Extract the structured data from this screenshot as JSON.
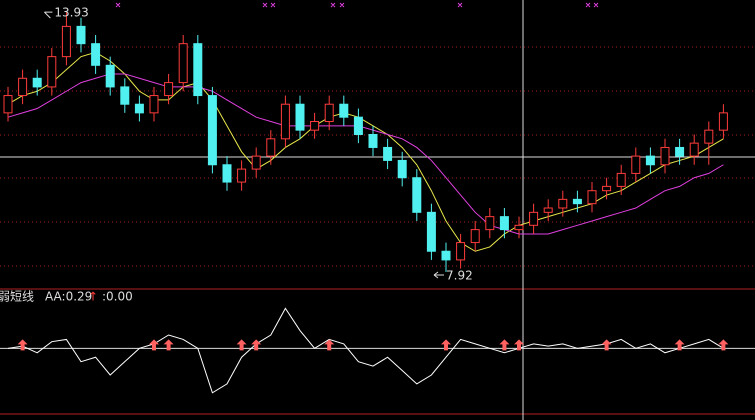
{
  "chart_data": {
    "type": "candlestick",
    "open": [
      11.6,
      12.0,
      12.4,
      12.2,
      12.9,
      13.6,
      13.2,
      12.7,
      12.2,
      11.8,
      11.6,
      12.0,
      12.3,
      13.2,
      12.0,
      10.4,
      10.0,
      10.3,
      10.6,
      11.0,
      11.8,
      11.2,
      11.4,
      11.8,
      11.5,
      11.1,
      10.8,
      10.5,
      10.1,
      9.3,
      8.4,
      8.2,
      8.6,
      8.9,
      9.2,
      8.9,
      9.0,
      9.3,
      9.4,
      9.6,
      9.5,
      9.8,
      9.9,
      10.2,
      10.6,
      10.4,
      10.8,
      10.6,
      10.9,
      11.2
    ],
    "high": [
      12.2,
      12.6,
      12.6,
      13.1,
      13.93,
      13.8,
      13.4,
      12.9,
      12.4,
      12.0,
      12.2,
      12.5,
      13.4,
      13.4,
      12.2,
      10.6,
      10.5,
      10.8,
      11.2,
      12.0,
      12.0,
      11.6,
      12.0,
      12.0,
      11.7,
      11.3,
      11.0,
      10.7,
      10.3,
      9.5,
      8.6,
      8.8,
      9.1,
      9.4,
      9.4,
      9.2,
      9.5,
      9.6,
      9.8,
      9.8,
      10.0,
      10.1,
      10.4,
      10.8,
      10.8,
      11.0,
      11.0,
      11.1,
      11.4,
      11.8
    ],
    "low": [
      11.4,
      11.8,
      12.0,
      12.0,
      12.7,
      13.0,
      12.5,
      12.0,
      11.6,
      11.4,
      11.4,
      11.8,
      12.1,
      11.8,
      10.2,
      9.8,
      9.8,
      10.1,
      10.4,
      10.8,
      11.0,
      11.0,
      11.2,
      11.3,
      10.9,
      10.6,
      10.3,
      9.9,
      9.1,
      8.2,
      7.92,
      8.0,
      8.4,
      8.7,
      8.7,
      8.7,
      8.8,
      9.1,
      9.2,
      9.3,
      9.3,
      9.6,
      9.7,
      10.0,
      10.2,
      10.2,
      10.4,
      10.4,
      10.4,
      11.0
    ],
    "close": [
      12.0,
      12.4,
      12.2,
      12.9,
      13.6,
      13.2,
      12.7,
      12.2,
      11.8,
      11.6,
      12.0,
      12.3,
      13.2,
      12.0,
      10.4,
      10.0,
      10.3,
      10.6,
      11.0,
      11.8,
      11.2,
      11.4,
      11.8,
      11.5,
      11.1,
      10.8,
      10.5,
      10.1,
      9.3,
      8.4,
      8.2,
      8.6,
      8.9,
      9.2,
      8.9,
      9.0,
      9.3,
      9.4,
      9.6,
      9.5,
      9.8,
      9.9,
      10.2,
      10.6,
      10.4,
      10.8,
      10.6,
      10.9,
      11.2,
      11.6
    ],
    "up_color": "#ff3c3c",
    "down_color": "#50f0f0",
    "lines": [
      {
        "color": "#e8e84a",
        "values": [
          11.8,
          12.0,
          12.1,
          12.3,
          12.6,
          12.9,
          13.0,
          12.8,
          12.5,
          12.1,
          11.9,
          11.9,
          12.2,
          12.3,
          11.9,
          11.3,
          10.7,
          10.3,
          10.5,
          10.8,
          11.0,
          11.3,
          11.5,
          11.6,
          11.5,
          11.3,
          11.1,
          10.8,
          10.4,
          9.8,
          9.1,
          8.6,
          8.4,
          8.5,
          8.8,
          9.0,
          9.1,
          9.2,
          9.3,
          9.4,
          9.5,
          9.7,
          9.8,
          10.0,
          10.2,
          10.4,
          10.5,
          10.6,
          10.8,
          11.0
        ]
      },
      {
        "color": "#e040e0",
        "values": [
          11.5,
          11.6,
          11.7,
          11.9,
          12.1,
          12.3,
          12.4,
          12.5,
          12.5,
          12.4,
          12.3,
          12.2,
          12.2,
          12.2,
          12.1,
          11.9,
          11.7,
          11.5,
          11.4,
          11.3,
          11.3,
          11.3,
          11.3,
          11.3,
          11.3,
          11.2,
          11.1,
          11.0,
          10.8,
          10.5,
          10.1,
          9.7,
          9.3,
          9.0,
          8.9,
          8.8,
          8.8,
          8.8,
          8.9,
          9.0,
          9.1,
          9.2,
          9.3,
          9.4,
          9.6,
          9.8,
          9.9,
          10.1,
          10.2,
          10.4
        ]
      }
    ],
    "ylim": [
      7.55,
      14.21
    ],
    "annotations": [
      "13.93",
      "7.92"
    ],
    "indicator": {
      "name": "强弱短线",
      "aa_label": "AA:0.29",
      "arrow": "↑",
      "value_label": ":0.00",
      "values": [
        0.0,
        0.05,
        -0.1,
        0.15,
        0.2,
        -0.3,
        -0.2,
        -0.6,
        -0.3,
        0.0,
        0.1,
        0.3,
        0.2,
        0.0,
        -1.0,
        -0.8,
        -0.2,
        0.1,
        0.3,
        0.9,
        0.4,
        0.0,
        0.2,
        0.1,
        -0.3,
        -0.4,
        -0.2,
        -0.5,
        -0.8,
        -0.6,
        -0.2,
        0.2,
        0.1,
        0.0,
        -0.1,
        0.0,
        0.1,
        0.05,
        0.1,
        0.0,
        0.05,
        0.1,
        0.2,
        0.0,
        0.1,
        -0.1,
        0.0,
        0.1,
        0.2,
        0.0
      ],
      "ylim": [
        -1.5,
        1.2
      ],
      "signals": [
        1,
        10,
        11,
        16,
        17,
        22,
        30,
        34,
        35,
        41,
        46,
        49
      ]
    }
  }
}
